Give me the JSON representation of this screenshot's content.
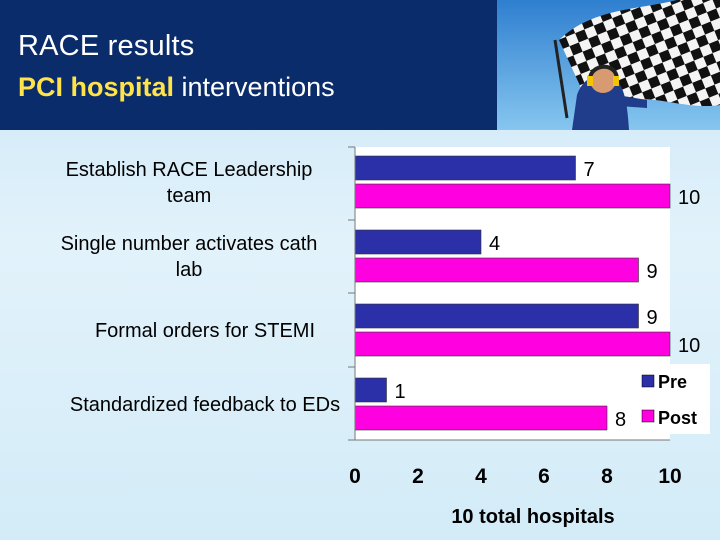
{
  "slide": {
    "title": "RACE results",
    "subtitle_highlight": "PCI hospital",
    "subtitle_rest": " interventions"
  },
  "colors": {
    "header_bg": "#0b2c6b",
    "highlight": "#ffe34a",
    "pre": "#2b2fa8",
    "post": "#ff00e0"
  },
  "icons": {
    "photo": "checkered-flag-photo"
  },
  "chart_data": {
    "type": "bar",
    "orientation": "horizontal",
    "categories": [
      [
        "Establish RACE Leadership",
        "team"
      ],
      [
        "Single number activates cath",
        "lab"
      ],
      [
        "Formal orders for STEMI"
      ],
      [
        "Standardized feedback to EDs"
      ]
    ],
    "series": [
      {
        "name": "Pre",
        "values": [
          7,
          4,
          9,
          1
        ]
      },
      {
        "name": "Post",
        "values": [
          10,
          9,
          10,
          8
        ]
      }
    ],
    "xlim": [
      0,
      10
    ],
    "xticks": [
      0,
      2,
      4,
      6,
      8,
      10
    ],
    "xlabel": "10 total hospitals",
    "grid": false,
    "legend": "bottom-right",
    "data_labels": true
  }
}
